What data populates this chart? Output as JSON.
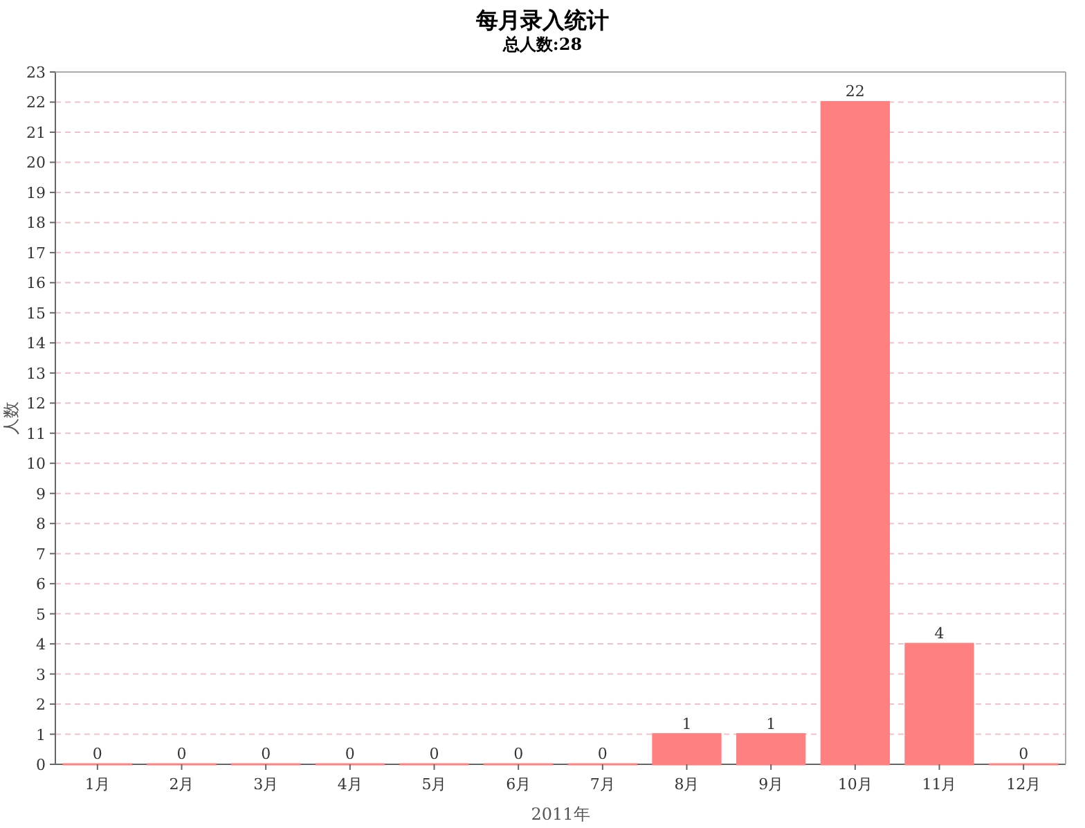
{
  "chart_data": {
    "type": "bar",
    "title": "每月录入统计",
    "subtitle": "总人数:28",
    "xlabel": "2011年",
    "ylabel": "人数",
    "categories": [
      "1月",
      "2月",
      "3月",
      "4月",
      "5月",
      "6月",
      "7月",
      "8月",
      "9月",
      "10月",
      "11月",
      "12月"
    ],
    "values": [
      0,
      0,
      0,
      0,
      0,
      0,
      0,
      1,
      1,
      22,
      4,
      0
    ],
    "color": "#ff8080",
    "ylim": [
      0,
      23
    ],
    "yticks": [
      0,
      1,
      2,
      3,
      4,
      5,
      6,
      7,
      8,
      9,
      10,
      11,
      12,
      13,
      14,
      15,
      16,
      17,
      18,
      19,
      20,
      21,
      22,
      23
    ],
    "grid": "y",
    "data_labels": true
  }
}
